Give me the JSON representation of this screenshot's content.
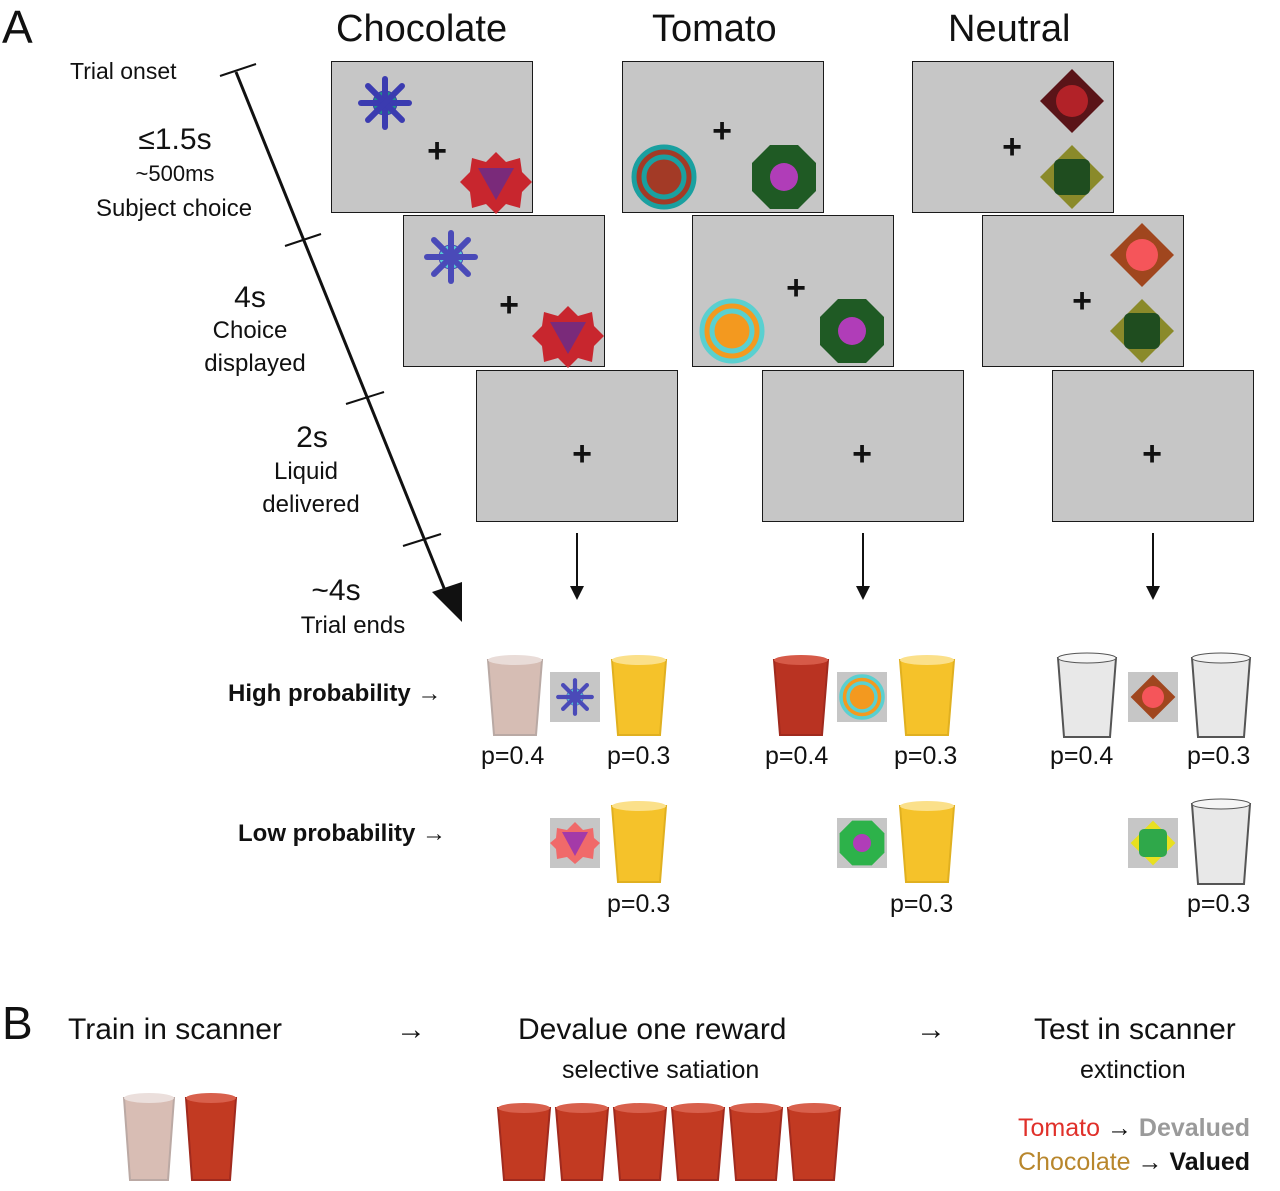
{
  "panel_a": {
    "letter": "A",
    "columns": [
      "Chocolate",
      "Tomato",
      "Neutral"
    ],
    "timeline": {
      "onset": "Trial onset",
      "t1_time": "≤1.5s",
      "t1_sub1": "~500ms",
      "t1_sub2": "Subject choice",
      "t2_time": "4s",
      "t2_sub1": "Choice",
      "t2_sub2": "displayed",
      "t3_time": "2s",
      "t3_sub1": "Liquid",
      "t3_sub2": "delivered",
      "t4_time": "~4s",
      "t4_sub1": "Trial ends"
    },
    "fixation": "+",
    "high_label": "High probability →",
    "low_label": "Low probability →",
    "p_high": "p=0.4",
    "p_other": "p=0.3"
  },
  "panel_b": {
    "letter": "B",
    "step1": "Train in scanner",
    "arrow": "→",
    "step2": "Devalue one reward",
    "step2_sub": "selective satiation",
    "step3": "Test in scanner",
    "step3_sub": "extinction",
    "legend": {
      "tomato": "Tomato",
      "devalued": "Devalued",
      "chocolate": "Chocolate",
      "valued": "Valued",
      "arrow": "→"
    }
  },
  "colors": {
    "tomato_juice": "#c23a22",
    "chocolate_milk": "#d8bdb4",
    "orange_juice": "#f5c22a",
    "tomato_text": "#e0302a",
    "chocolate_text": "#b8862c",
    "devalued_text": "#9a9a9a",
    "screen_gray": "#c6c6c6"
  }
}
